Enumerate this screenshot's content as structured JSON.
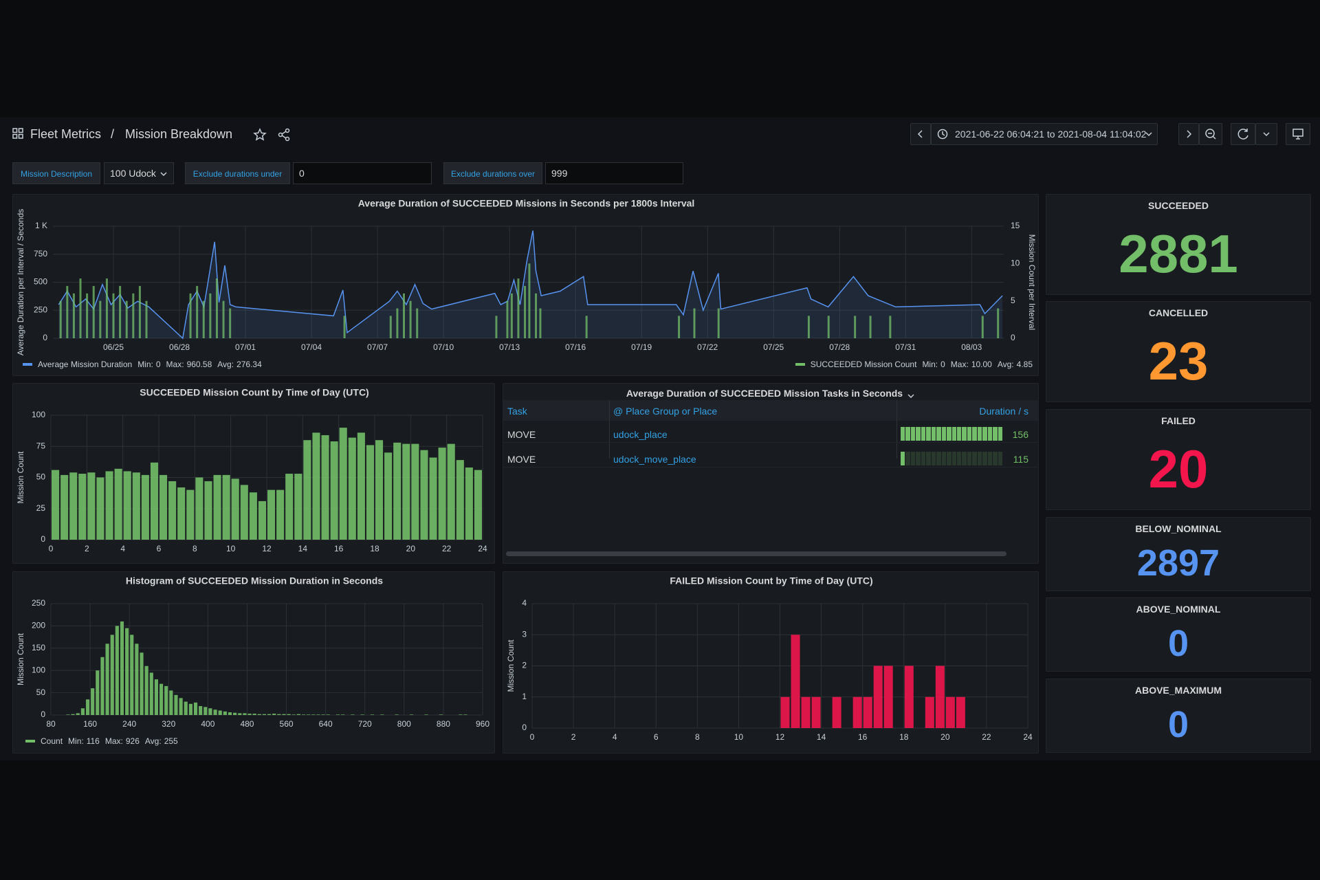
{
  "header": {
    "parent": "Fleet Metrics",
    "separator": "/",
    "title": "Mission Breakdown",
    "time_range": "2021-06-22 06:04:21 to 2021-08-04 11:04:02"
  },
  "variables": [
    {
      "label": "Mission Description",
      "value": "100 Udock",
      "kind": "select"
    },
    {
      "label": "Exclude durations under",
      "value": "0",
      "kind": "text"
    },
    {
      "label": "Exclude durations over",
      "value": "999",
      "kind": "text"
    }
  ],
  "chart_data": [
    {
      "type": "timeseries",
      "title": "Average Duration of SUCCEEDED Missions in Seconds per 1800s Interval",
      "ylabel": "Average Duration per Interval / Seconds",
      "y2label": "Mission Count per Interval",
      "xlim": [
        173.25,
        216.46
      ],
      "xticks": [
        {
          "value": 176,
          "label": "06/25"
        },
        {
          "value": 179,
          "label": "06/28"
        },
        {
          "value": 182,
          "label": "07/01"
        },
        {
          "value": 185,
          "label": "07/04"
        },
        {
          "value": 188,
          "label": "07/07"
        },
        {
          "value": 191,
          "label": "07/10"
        },
        {
          "value": 194,
          "label": "07/13"
        },
        {
          "value": 197,
          "label": "07/16"
        },
        {
          "value": 200,
          "label": "07/19"
        },
        {
          "value": 203,
          "label": "07/22"
        },
        {
          "value": 206,
          "label": "07/25"
        },
        {
          "value": 209,
          "label": "07/28"
        },
        {
          "value": 212,
          "label": "07/31"
        },
        {
          "value": 215,
          "label": "08/03"
        }
      ],
      "ylim": [
        0,
        1000
      ],
      "yticks": [
        0,
        250,
        500,
        750,
        {
          "value": 1000,
          "label": "1 K"
        }
      ],
      "y2lim": [
        0,
        15
      ],
      "y2ticks": [
        0,
        5,
        10,
        15
      ],
      "grid": true,
      "series": [
        {
          "name": "Average Mission Duration",
          "type": "line",
          "color": "#5794f2",
          "x": [
            173.51,
            173.9,
            174.3,
            174.74,
            175.1,
            175.5,
            175.89,
            176.3,
            176.65,
            177.1,
            177.61,
            179.15,
            179.41,
            179.8,
            180.11,
            180.6,
            180.8,
            181.06,
            181.3,
            181.56,
            186.0,
            186.43,
            186.62,
            188.54,
            188.9,
            189.31,
            189.7,
            190.07,
            190.46,
            193.33,
            193.6,
            193.91,
            194.2,
            194.48,
            194.8,
            195.06,
            195.2,
            195.44,
            196.3,
            197.36,
            197.55,
            201.58,
            201.9,
            202.34,
            202.8,
            203.49,
            203.6,
            207.52,
            207.7,
            208.48,
            209.63,
            210.3,
            211.55,
            215.38,
            215.6,
            216.4
          ],
          "values": [
            300,
            420,
            280,
            350,
            260,
            480,
            300,
            390,
            270,
            330,
            280,
            0,
            300,
            420,
            280,
            860,
            320,
            650,
            300,
            280,
            200,
            430,
            50,
            330,
            420,
            300,
            480,
            310,
            260,
            400,
            300,
            330,
            520,
            300,
            700,
            960.58,
            600,
            380,
            420,
            550,
            300,
            300,
            210,
            600,
            250,
            580,
            260,
            450,
            350,
            280,
            550,
            380,
            280,
            300,
            220,
            380
          ],
          "legend_stats": [
            {
              "label": "Min:",
              "value": 0
            },
            {
              "label": "Max:",
              "value": 960.58
            },
            {
              "label": "Avg:",
              "value": 276.34
            }
          ]
        },
        {
          "name": "SUCCEEDED Mission Count",
          "type": "bars",
          "axis": "y2",
          "color": "#73bf69",
          "x": [
            173.6,
            173.9,
            174.2,
            174.5,
            174.8,
            175.1,
            175.4,
            175.7,
            176.0,
            176.3,
            176.6,
            176.9,
            177.2,
            177.5,
            179.5,
            179.8,
            180.1,
            180.4,
            180.7,
            181.0,
            181.3,
            186.5,
            188.6,
            188.9,
            189.2,
            189.5,
            189.8,
            193.4,
            193.9,
            194.1,
            194.4,
            194.7,
            194.9,
            195.2,
            195.4,
            197.5,
            201.7,
            202.4,
            203.5,
            207.6,
            208.5,
            209.7,
            210.4,
            211.3,
            215.5,
            216.2
          ],
          "values": [
            5,
            7,
            6,
            8,
            6,
            7,
            5,
            8,
            6,
            7,
            5,
            6,
            7,
            5,
            6,
            7,
            5,
            6,
            8,
            5,
            4,
            3,
            3,
            4,
            6,
            5,
            4,
            3,
            5,
            6,
            8,
            7,
            10,
            6,
            4,
            3,
            3,
            4,
            4,
            3,
            3,
            3,
            3,
            3,
            3,
            4
          ],
          "legend_stats": [
            {
              "label": "Min:",
              "value": 0
            },
            {
              "label": "Max:",
              "value": 10,
              "value_label": "10.00"
            },
            {
              "label": "Avg:",
              "value": 4.85
            }
          ]
        }
      ]
    },
    {
      "type": "histogram",
      "title": "SUCCEEDED Mission Count by Time of Day (UTC)",
      "ylabel": "Mission Count",
      "color": "#73bf69",
      "bins": [
        0,
        0.5,
        1,
        1.5,
        2,
        2.5,
        3,
        3.5,
        4,
        4.5,
        5,
        5.5,
        6,
        6.5,
        7,
        7.5,
        8,
        8.5,
        9,
        9.5,
        10,
        10.5,
        11,
        11.5,
        12,
        12.5,
        13,
        13.5,
        14,
        14.5,
        15,
        15.5,
        16,
        16.5,
        17,
        17.5,
        18,
        18.5,
        19,
        19.5,
        20,
        20.5,
        21,
        21.5,
        22,
        22.5,
        23,
        23.5,
        24
      ],
      "values": [
        56,
        52,
        54,
        53,
        54,
        50,
        55,
        57,
        55,
        54,
        52,
        62,
        52,
        47,
        42,
        40,
        50,
        47,
        52,
        52,
        49,
        44,
        38,
        31,
        40,
        40,
        53,
        53,
        80,
        86,
        84,
        79,
        90,
        82,
        86,
        76,
        80,
        70,
        78,
        77,
        77,
        72,
        66,
        74,
        77,
        64,
        58,
        56
      ],
      "xlim": [
        0,
        24
      ],
      "xticks": [
        0,
        2,
        4,
        6,
        8,
        10,
        12,
        14,
        16,
        18,
        20,
        22,
        24
      ],
      "ylim": [
        0,
        100
      ],
      "yticks": [
        0,
        25,
        50,
        75,
        100
      ],
      "grid": true
    },
    {
      "type": "histogram",
      "title": "Histogram of SUCCEEDED Mission Duration in Seconds",
      "ylabel": "Mission Count",
      "color": "#73bf69",
      "bins": [
        110,
        120,
        130,
        140,
        150,
        160,
        170,
        180,
        190,
        200,
        210,
        220,
        230,
        240,
        250,
        260,
        270,
        280,
        290,
        300,
        310,
        320,
        330,
        340,
        350,
        360,
        370,
        380,
        390,
        400,
        410,
        420,
        430,
        440,
        450,
        460,
        470,
        480,
        490,
        500,
        510,
        520,
        530,
        540,
        550,
        560,
        570,
        580,
        590,
        600,
        610,
        620,
        630,
        640,
        650,
        660,
        670,
        680,
        690,
        700,
        710,
        720,
        730,
        740,
        750,
        760,
        770,
        780,
        790,
        800,
        810,
        820,
        830,
        840,
        850,
        860,
        870,
        880,
        890,
        900,
        910,
        920,
        930
      ],
      "values": [
        1,
        2,
        4,
        15,
        35,
        60,
        100,
        130,
        160,
        180,
        200,
        210,
        195,
        180,
        160,
        140,
        110,
        95,
        80,
        70,
        65,
        55,
        45,
        38,
        30,
        25,
        28,
        20,
        18,
        15,
        12,
        10,
        8,
        6,
        5,
        4,
        4,
        3,
        3,
        2,
        2,
        2,
        3,
        2,
        2,
        2,
        1,
        2,
        1,
        1,
        1,
        1,
        1,
        1,
        0,
        1,
        1,
        0,
        1,
        0,
        1,
        0,
        1,
        0,
        1,
        0,
        0,
        1,
        0,
        0,
        1,
        0,
        0,
        1,
        0,
        0,
        1,
        0,
        0,
        0,
        1,
        1
      ],
      "xlim": [
        80,
        960
      ],
      "xticks": [
        80,
        160,
        240,
        320,
        400,
        480,
        560,
        640,
        720,
        800,
        880,
        960
      ],
      "ylim": [
        0,
        250
      ],
      "yticks": [
        0,
        50,
        100,
        150,
        200,
        250
      ],
      "grid": true,
      "legend": {
        "name": "Count",
        "stats": [
          {
            "label": "Min:",
            "value": 116
          },
          {
            "label": "Max:",
            "value": 926
          },
          {
            "label": "Avg:",
            "value": 255
          }
        ]
      }
    },
    {
      "type": "histogram",
      "title": "FAILED Mission Count by Time of Day (UTC)",
      "ylabel": "Mission Count",
      "color": "#f2164d",
      "bins": [
        0,
        0.5,
        1,
        1.5,
        2,
        2.5,
        3,
        3.5,
        4,
        4.5,
        5,
        5.5,
        6,
        6.5,
        7,
        7.5,
        8,
        8.5,
        9,
        9.5,
        10,
        10.5,
        11,
        11.5,
        12,
        12.5,
        13,
        13.5,
        14,
        14.5,
        15,
        15.5,
        16,
        16.5,
        17,
        17.5,
        18,
        18.5,
        19,
        19.5,
        20,
        20.5,
        21,
        21.5,
        22,
        22.5,
        23,
        23.5,
        24
      ],
      "values": [
        0,
        0,
        0,
        0,
        0,
        0,
        0,
        0,
        0,
        0,
        0,
        0,
        0,
        0,
        0,
        0,
        0,
        0,
        0,
        0,
        0,
        0,
        0,
        0,
        1,
        3,
        1,
        1,
        0,
        1,
        0,
        1,
        1,
        2,
        2,
        0,
        2,
        0,
        1,
        2,
        1,
        1,
        0,
        0,
        0,
        0,
        0,
        0
      ],
      "xlim": [
        0,
        24
      ],
      "xticks": [
        0,
        2,
        4,
        6,
        8,
        10,
        12,
        14,
        16,
        18,
        20,
        22,
        24
      ],
      "ylim": [
        0,
        4
      ],
      "yticks": [
        0,
        1,
        2,
        3,
        4
      ],
      "grid": true
    }
  ],
  "table": {
    "title": "Average Duration of SUCCEEDED Mission Tasks in Seconds",
    "columns": [
      "Task",
      "@ Place Group or Place",
      "Duration / s"
    ],
    "rows": [
      [
        "MOVE",
        "udock_place",
        156
      ],
      [
        "MOVE",
        "udock_move_place",
        115
      ]
    ],
    "gauge_color": "#73bf69"
  },
  "stats": [
    {
      "title": "SUCCEEDED",
      "value": 2881,
      "color": "#73bf69"
    },
    {
      "title": "CANCELLED",
      "value": 23,
      "color": "#ff9830"
    },
    {
      "title": "FAILED",
      "value": 20,
      "color": "#f2164d"
    },
    {
      "title": "BELOW_NOMINAL",
      "value": 2897,
      "color": "#5794f2"
    },
    {
      "title": "ABOVE_NOMINAL",
      "value": 0,
      "color": "#5794f2"
    },
    {
      "title": "ABOVE_MAXIMUM",
      "value": 0,
      "color": "#5794f2"
    }
  ]
}
